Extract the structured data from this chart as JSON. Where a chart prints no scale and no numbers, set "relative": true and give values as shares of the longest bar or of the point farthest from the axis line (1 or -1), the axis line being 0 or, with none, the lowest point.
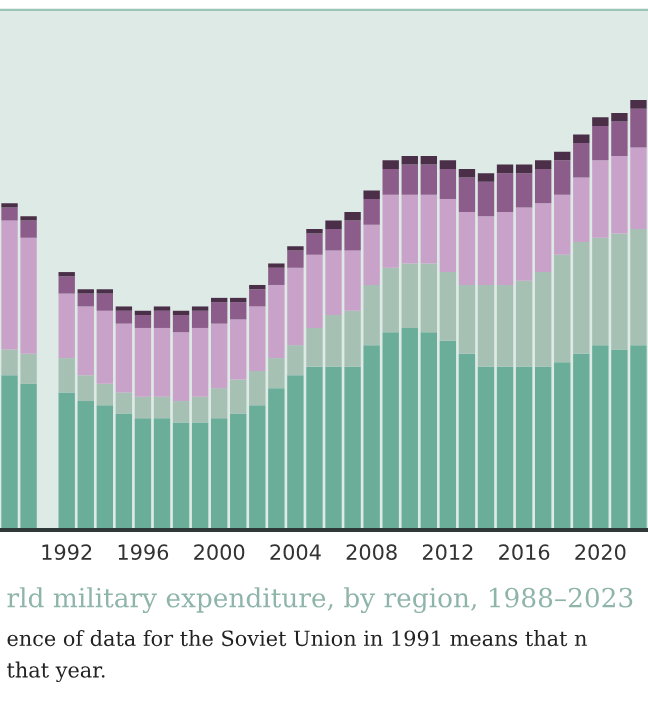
{
  "chart_data": {
    "type": "bar",
    "stacked": true,
    "relative": true,
    "title": "rld military expenditure, by region, 1988–2023",
    "annotations": [
      "ence of data for the Soviet Union in 1991 means that n",
      "that year."
    ],
    "categories": [
      null,
      null,
      null,
      "1992",
      null,
      null,
      null,
      "1996",
      null,
      null,
      null,
      "2000",
      null,
      null,
      null,
      "2004",
      null,
      null,
      null,
      "2008",
      null,
      null,
      null,
      "2012",
      null,
      null,
      null,
      "2016",
      null,
      null,
      null,
      "2020",
      null,
      null
    ],
    "series": [
      {
        "color": "#6aae9a",
        "values": [
          0.36,
          0.34,
          null,
          0.32,
          0.3,
          0.29,
          0.27,
          0.26,
          0.26,
          0.25,
          0.25,
          0.26,
          0.27,
          0.29,
          0.33,
          0.36,
          0.38,
          0.38,
          0.38,
          0.43,
          0.46,
          0.47,
          0.46,
          0.44,
          0.41,
          0.38,
          0.38,
          0.38,
          0.38,
          0.39,
          0.41,
          0.43,
          0.42,
          0.43
        ]
      },
      {
        "color": "#a6c1b4",
        "values": [
          0.06,
          0.07,
          null,
          0.08,
          0.06,
          0.05,
          0.05,
          0.05,
          0.05,
          0.05,
          0.06,
          0.07,
          0.08,
          0.08,
          0.07,
          0.07,
          0.09,
          0.12,
          0.13,
          0.14,
          0.15,
          0.15,
          0.16,
          0.16,
          0.16,
          0.19,
          0.19,
          0.2,
          0.22,
          0.25,
          0.26,
          0.25,
          0.27,
          0.27
        ]
      },
      {
        "color": "#c9a2c9",
        "values": [
          0.3,
          0.27,
          null,
          0.15,
          0.16,
          0.17,
          0.16,
          0.16,
          0.16,
          0.16,
          0.16,
          0.15,
          0.14,
          0.15,
          0.17,
          0.18,
          0.17,
          0.15,
          0.14,
          0.14,
          0.17,
          0.16,
          0.16,
          0.17,
          0.17,
          0.16,
          0.17,
          0.17,
          0.16,
          0.14,
          0.15,
          0.18,
          0.18,
          0.19
        ]
      },
      {
        "color": "#8c5c8a",
        "values": [
          0.03,
          0.04,
          null,
          0.04,
          0.03,
          0.04,
          0.03,
          0.03,
          0.04,
          0.04,
          0.04,
          0.05,
          0.04,
          0.04,
          0.04,
          0.04,
          0.05,
          0.05,
          0.07,
          0.06,
          0.06,
          0.07,
          0.07,
          0.07,
          0.08,
          0.08,
          0.09,
          0.08,
          0.08,
          0.08,
          0.08,
          0.08,
          0.08,
          0.09
        ]
      },
      {
        "color": "#4b2f49",
        "values": [
          0.01,
          0.01,
          null,
          0.01,
          0.01,
          0.01,
          0.01,
          0.01,
          0.01,
          0.01,
          0.01,
          0.01,
          0.01,
          0.01,
          0.01,
          0.01,
          0.01,
          0.02,
          0.02,
          0.02,
          0.02,
          0.02,
          0.02,
          0.02,
          0.02,
          0.02,
          0.02,
          0.02,
          0.02,
          0.02,
          0.02,
          0.02,
          0.02,
          0.02
        ]
      }
    ]
  }
}
